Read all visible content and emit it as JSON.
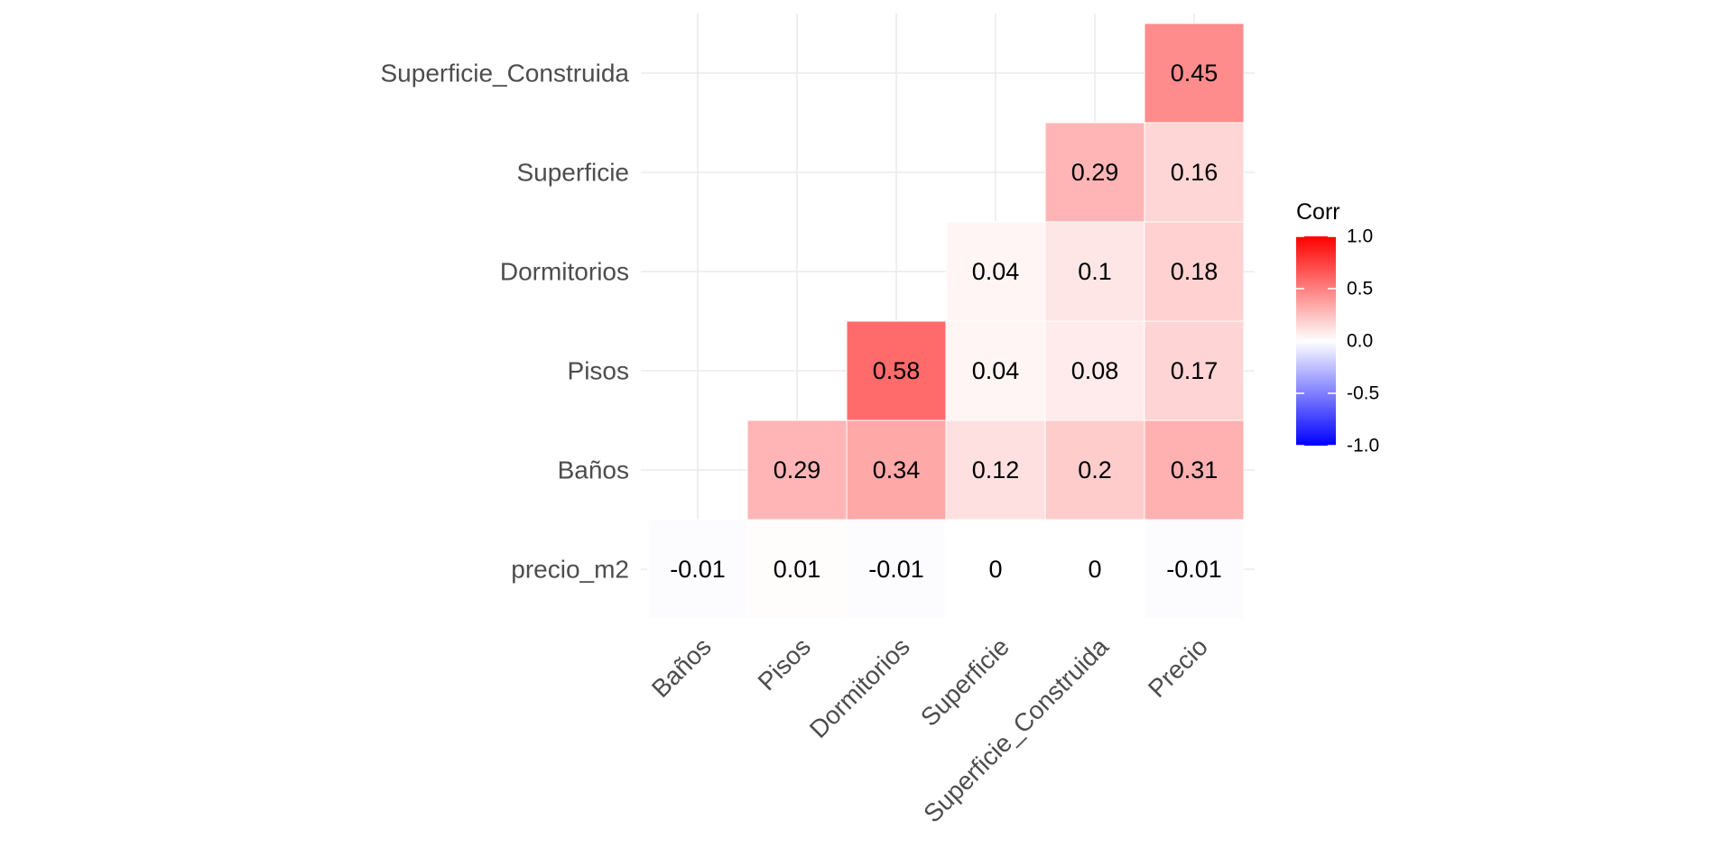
{
  "chart_data": {
    "type": "heatmap",
    "title": "",
    "xlabel": "",
    "ylabel": "",
    "x_categories": [
      "Baños",
      "Pisos",
      "Dormitorios",
      "Superficie",
      "Superficie_Construida",
      "Precio"
    ],
    "y_categories": [
      "precio_m2",
      "Baños",
      "Pisos",
      "Dormitorios",
      "Superficie",
      "Superficie_Construida"
    ],
    "cells": [
      {
        "x": "Baños",
        "y": "precio_m2",
        "value": -0.01
      },
      {
        "x": "Pisos",
        "y": "precio_m2",
        "value": 0.01
      },
      {
        "x": "Dormitorios",
        "y": "precio_m2",
        "value": -0.01
      },
      {
        "x": "Superficie",
        "y": "precio_m2",
        "value": 0
      },
      {
        "x": "Superficie_Construida",
        "y": "precio_m2",
        "value": 0
      },
      {
        "x": "Precio",
        "y": "precio_m2",
        "value": -0.01
      },
      {
        "x": "Pisos",
        "y": "Baños",
        "value": 0.29
      },
      {
        "x": "Dormitorios",
        "y": "Baños",
        "value": 0.34
      },
      {
        "x": "Superficie",
        "y": "Baños",
        "value": 0.12
      },
      {
        "x": "Superficie_Construida",
        "y": "Baños",
        "value": 0.2
      },
      {
        "x": "Precio",
        "y": "Baños",
        "value": 0.31
      },
      {
        "x": "Dormitorios",
        "y": "Pisos",
        "value": 0.58
      },
      {
        "x": "Superficie",
        "y": "Pisos",
        "value": 0.04
      },
      {
        "x": "Superficie_Construida",
        "y": "Pisos",
        "value": 0.08
      },
      {
        "x": "Precio",
        "y": "Pisos",
        "value": 0.17
      },
      {
        "x": "Superficie",
        "y": "Dormitorios",
        "value": 0.04
      },
      {
        "x": "Superficie_Construida",
        "y": "Dormitorios",
        "value": 0.1
      },
      {
        "x": "Precio",
        "y": "Dormitorios",
        "value": 0.18
      },
      {
        "x": "Superficie_Construida",
        "y": "Superficie",
        "value": 0.29
      },
      {
        "x": "Precio",
        "y": "Superficie",
        "value": 0.16
      },
      {
        "x": "Precio",
        "y": "Superficie_Construida",
        "value": 0.45
      }
    ],
    "legend": {
      "title": "Corr",
      "placement": "right",
      "ticks": [
        "1.0",
        "0.5",
        "0.0",
        "-0.5",
        "-1.0"
      ],
      "range": [
        -1,
        1
      ],
      "colors": {
        "low": "#0000ff",
        "mid": "#ffffff",
        "high": "#ff0000"
      }
    },
    "grid": true
  }
}
